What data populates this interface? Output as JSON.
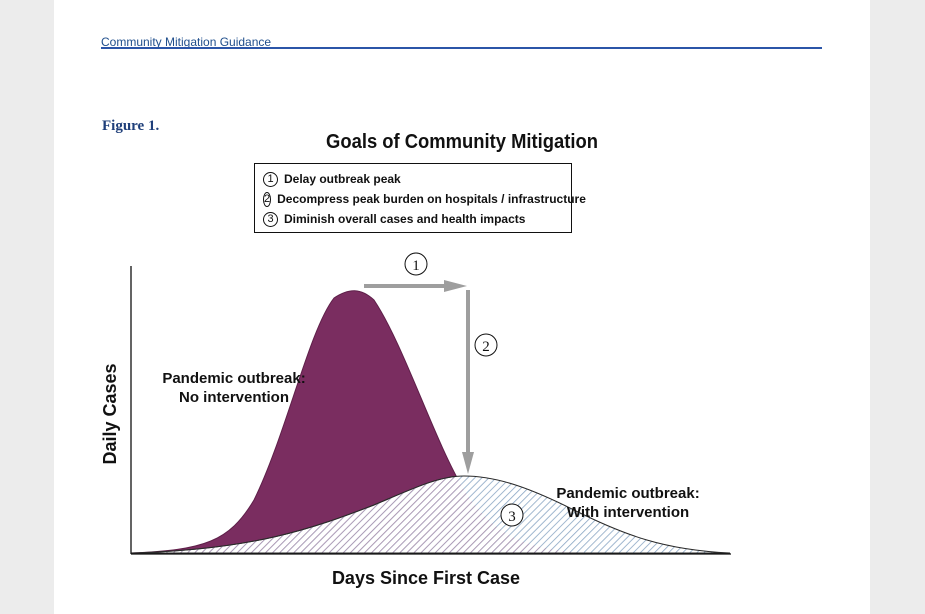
{
  "header": {
    "running_title": "Community Mitigation Guidance"
  },
  "figure": {
    "label": "Figure 1.",
    "title": "Goals of Community Mitigation",
    "goals": [
      {
        "num": "1",
        "text": "Delay outbreak peak"
      },
      {
        "num": "2",
        "text": "Decompress peak burden on hospitals / infrastructure"
      },
      {
        "num": "3",
        "text": "Diminish overall cases and health impacts"
      }
    ],
    "markers": {
      "one": "1",
      "two": "2",
      "three": "3"
    },
    "annotations": {
      "no_intervention_line1": "Pandemic outbreak:",
      "no_intervention_line2": "No intervention",
      "with_intervention_line1": "Pandemic outbreak:",
      "with_intervention_line2": "With intervention"
    }
  },
  "chart_data": {
    "type": "area",
    "title": "Goals of Community Mitigation",
    "xlabel": "Days Since First Case",
    "ylabel": "Daily Cases",
    "ylim": [
      0,
      1
    ],
    "grid": false,
    "ticks": "none",
    "series": [
      {
        "name": "Pandemic outbreak: No intervention",
        "peak_x": 0.38,
        "peak_y": 0.93,
        "color": "#7a2d60",
        "fill": "solid"
      },
      {
        "name": "Pandemic outbreak: With intervention",
        "peak_x": 0.55,
        "peak_y": 0.27,
        "color": "#8aa6c4",
        "fill": "hatched"
      }
    ],
    "colors": {
      "outbreak": "#7a2d60",
      "arrow": "#9e9e9e",
      "hatch": "#8aa6c4"
    }
  }
}
